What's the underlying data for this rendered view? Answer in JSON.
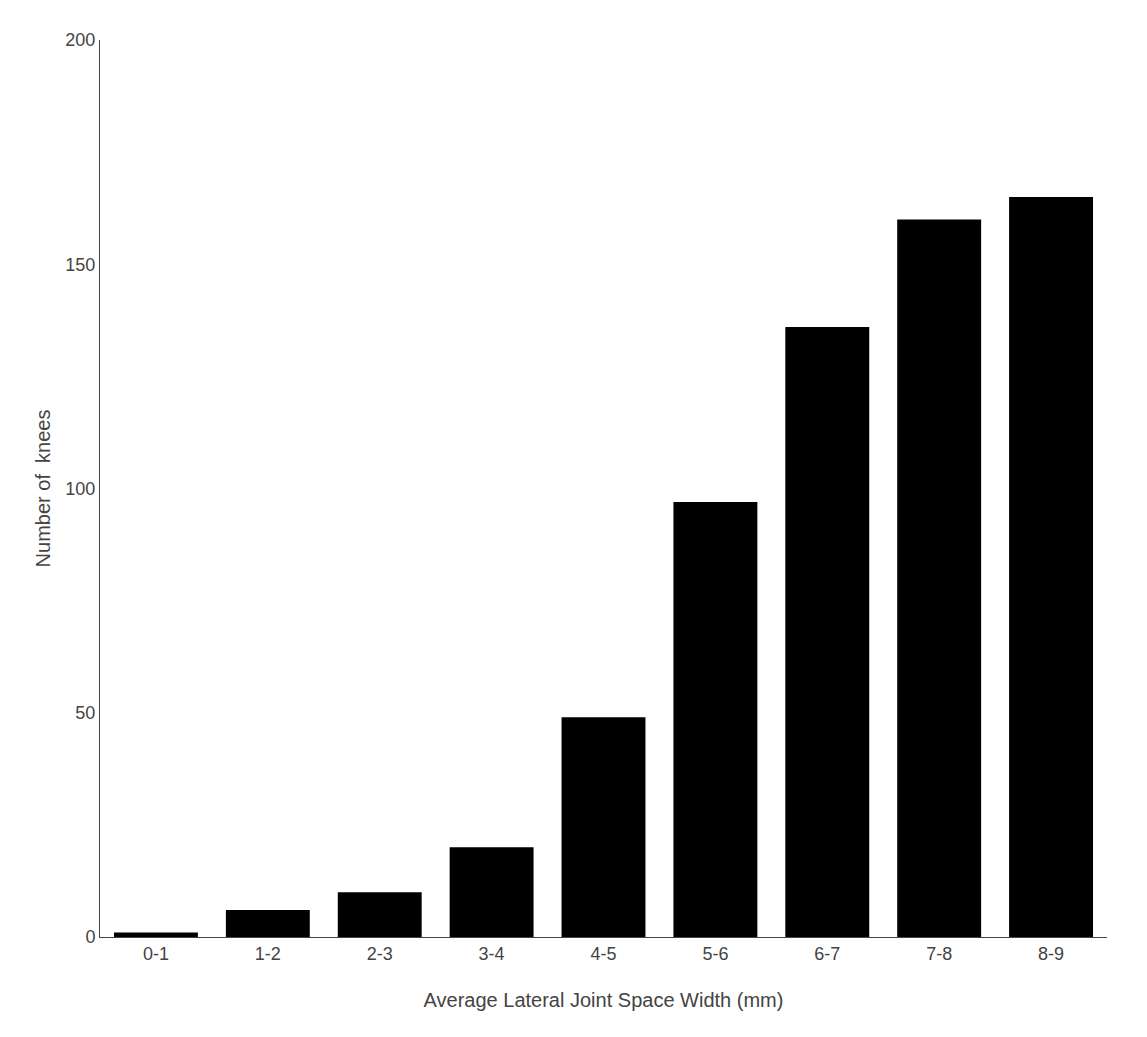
{
  "chart_data": {
    "type": "bar",
    "categories": [
      "0-1",
      "1-2",
      "2-3",
      "3-4",
      "4-5",
      "5-6",
      "6-7",
      "7-8",
      "8-9"
    ],
    "values": [
      1,
      6,
      10,
      20,
      49,
      97,
      136,
      160,
      165
    ],
    "color": "#000000",
    "xlabel": "Average Lateral Joint Space Width (mm)",
    "ylabel": "Number of  knees",
    "ylim": [
      0,
      200
    ],
    "yticks": [
      0,
      50,
      100,
      150,
      200
    ],
    "grid": false
  }
}
